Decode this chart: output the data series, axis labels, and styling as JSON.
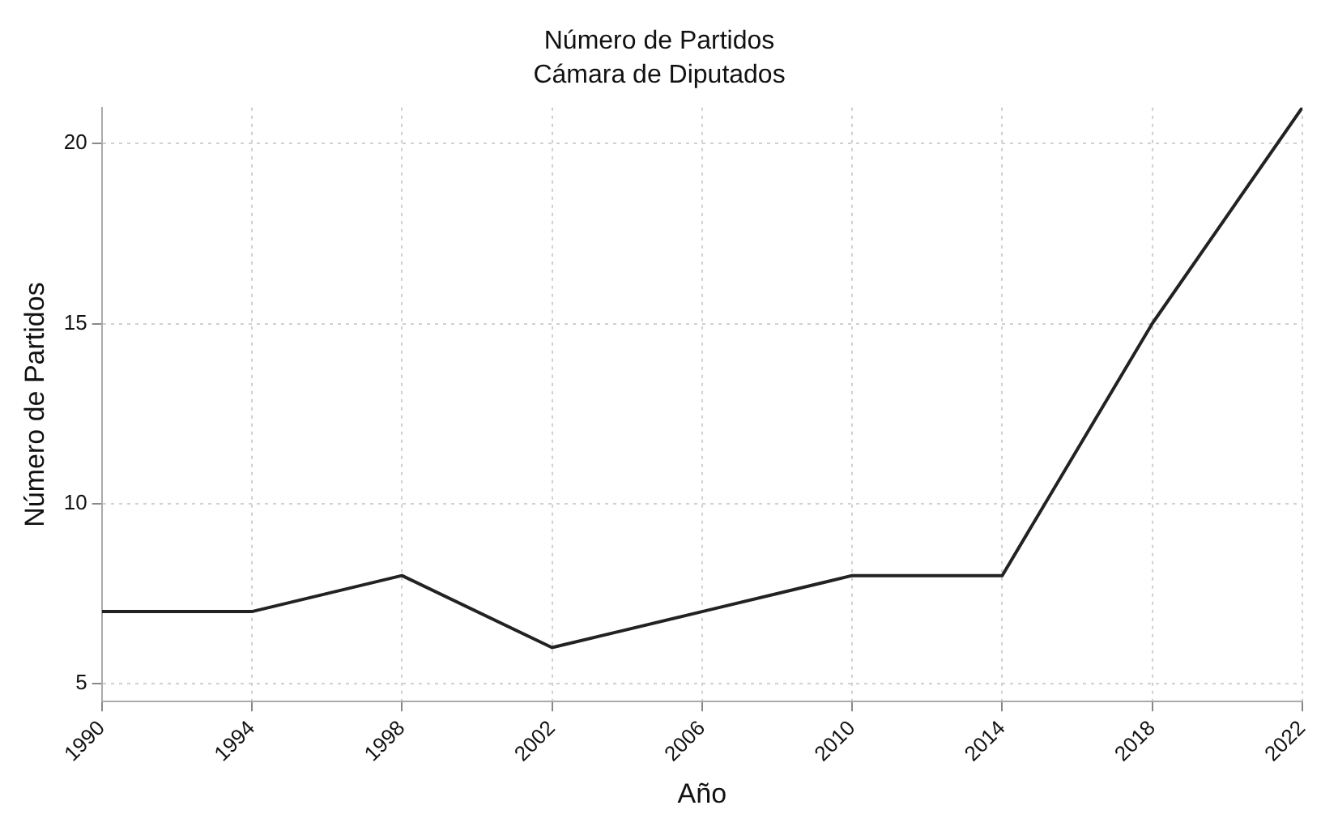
{
  "chart_data": {
    "type": "line",
    "title": "Número de Partidos",
    "subtitle": "Cámara de Diputados",
    "xlabel": "Año",
    "ylabel": "Número de Partidos",
    "x": [
      1990,
      1994,
      1998,
      2002,
      2006,
      2010,
      2014,
      2018,
      2022
    ],
    "series": [
      {
        "color": "#222222",
        "values": [
          7,
          7,
          8,
          6,
          7,
          8,
          8,
          15,
          21
        ]
      }
    ],
    "xlim": [
      1990,
      2022
    ],
    "xticks": [
      1990,
      1994,
      1998,
      2002,
      2006,
      2010,
      2014,
      2018,
      2022
    ],
    "ylim": [
      4.5,
      21
    ],
    "yticks": [
      5,
      10,
      15,
      20
    ],
    "grid": true,
    "legend": false,
    "marker": "none",
    "line_style": "solid"
  }
}
